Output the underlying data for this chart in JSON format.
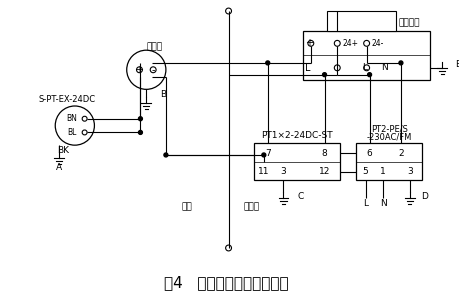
{
  "title": "图4   山顶水箱液位测量接线",
  "title_fontsize": 11,
  "bg_color": "#ffffff",
  "line_color": "#000000",
  "text_color": "#000000",
  "fig_width": 4.6,
  "fig_height": 3.06,
  "dpi": 100,
  "labels": {
    "biansonqi": "变送器",
    "label_A": "A",
    "label_B": "B",
    "label_C": "C",
    "label_D": "D",
    "label_E": "E",
    "label_BN": "BN",
    "label_BL": "BL",
    "label_BK": "BK",
    "label_spt": "S-PT-EX-24DC",
    "label_pt1": "PT1×2-24DC-ST",
    "label_pt2_line1": "PT2-PE/S",
    "label_pt2_line2": "-230AC/FM",
    "label_erciyibiao": "二次仪表",
    "label_xianchang": "现场",
    "label_yibiaoshi": "仪表室",
    "label_plus": "+",
    "label_minus": "-",
    "label_L": "L",
    "label_N": "N",
    "label_24plus": "24+",
    "label_24minus": "24-"
  }
}
